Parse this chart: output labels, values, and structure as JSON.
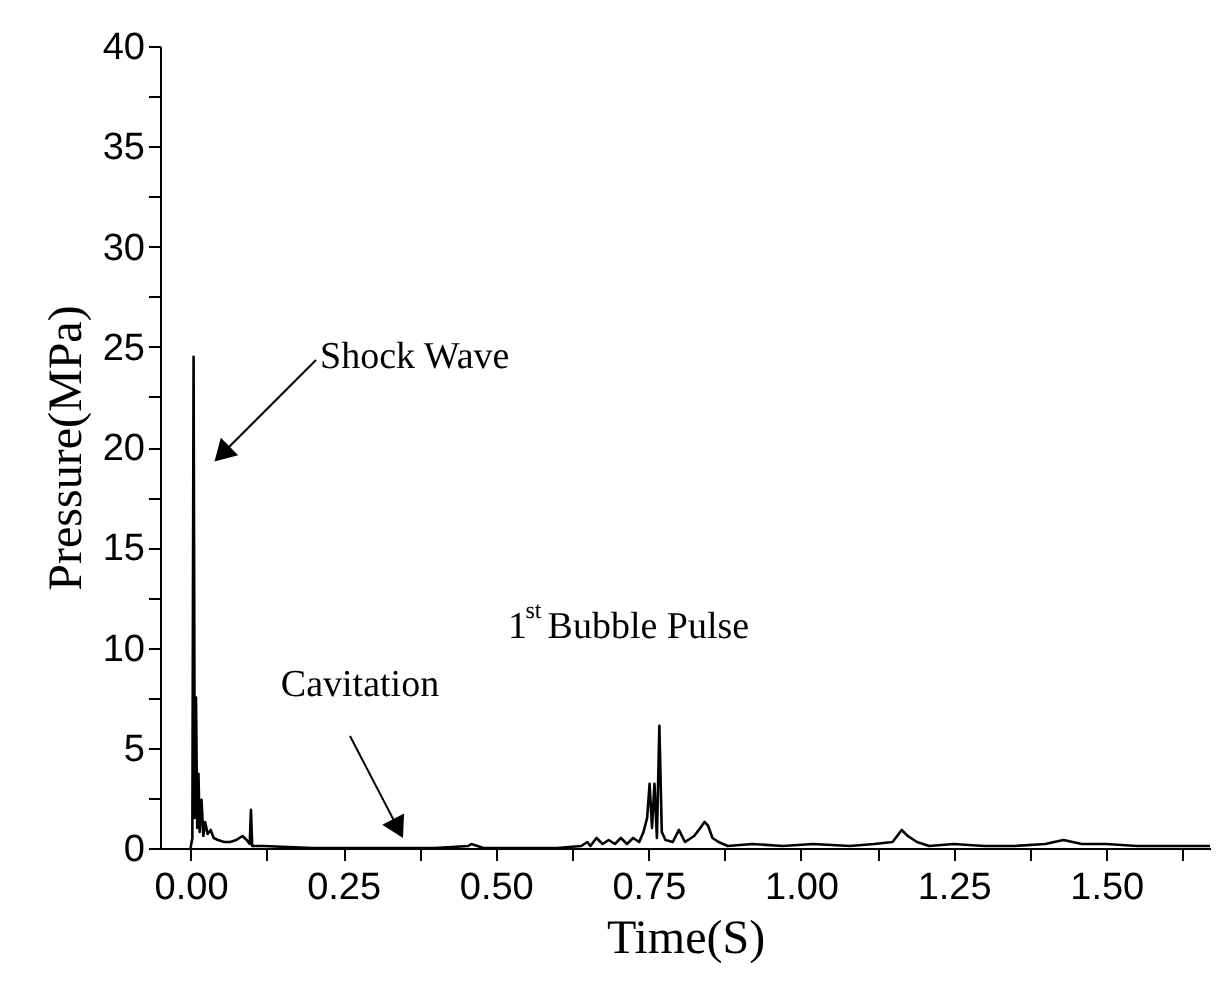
{
  "chart_data": {
    "type": "line",
    "xlabel": "Time(S)",
    "ylabel": "Pressure(MPa)",
    "xlim": [
      -0.05,
      1.67
    ],
    "ylim": [
      0,
      40
    ],
    "xticks": [
      {
        "value": 0,
        "label": "0.00"
      },
      {
        "value": 0.125,
        "label": null
      },
      {
        "value": 0.25,
        "label": "0.25"
      },
      {
        "value": 0.375,
        "label": null
      },
      {
        "value": 0.5,
        "label": "0.50"
      },
      {
        "value": 0.625,
        "label": null
      },
      {
        "value": 0.75,
        "label": "0.75"
      },
      {
        "value": 0.875,
        "label": null
      },
      {
        "value": 1,
        "label": "1.00"
      },
      {
        "value": 1.125,
        "label": null
      },
      {
        "value": 1.25,
        "label": "1.25"
      },
      {
        "value": 1.375,
        "label": null
      },
      {
        "value": 1.5,
        "label": "1.50"
      },
      {
        "value": 1.625,
        "label": null
      }
    ],
    "yticks": [
      0,
      {
        "value": 2.5,
        "label": null
      },
      5,
      {
        "value": 7.5,
        "label": null
      },
      10,
      {
        "value": 12.5,
        "label": null
      },
      15,
      {
        "value": 17.5,
        "label": null
      },
      20,
      {
        "value": 22.5,
        "label": null
      },
      25,
      {
        "value": 27.5,
        "label": null
      },
      30,
      {
        "value": 32.5,
        "label": null
      },
      35,
      {
        "value": 37.5,
        "label": null
      },
      40
    ],
    "grid": false,
    "marker": "none",
    "line_style": "solid",
    "series": [
      {
        "color": "#000000",
        "x": [
          0.0,
          0.003,
          0.005,
          0.007,
          0.009,
          0.011,
          0.013,
          0.015,
          0.018,
          0.021,
          0.024,
          0.028,
          0.033,
          0.038,
          0.045,
          0.055,
          0.065,
          0.075,
          0.085,
          0.092,
          0.097,
          0.099,
          0.101,
          0.12,
          0.2,
          0.3,
          0.4,
          0.455,
          0.46,
          0.47,
          0.48,
          0.6,
          0.64,
          0.65,
          0.655,
          0.665,
          0.675,
          0.685,
          0.695,
          0.705,
          0.715,
          0.725,
          0.735,
          0.742,
          0.748,
          0.752,
          0.756,
          0.76,
          0.764,
          0.768,
          0.772,
          0.778,
          0.79,
          0.8,
          0.81,
          0.825,
          0.835,
          0.842,
          0.848,
          0.855,
          0.865,
          0.88,
          0.92,
          0.97,
          1.02,
          1.08,
          1.12,
          1.15,
          1.165,
          1.175,
          1.19,
          1.21,
          1.25,
          1.3,
          1.35,
          1.4,
          1.43,
          1.46,
          1.5,
          1.55,
          1.6,
          1.67
        ],
        "values": [
          0,
          0.5,
          24.5,
          1.5,
          7.5,
          1.0,
          3.7,
          0.8,
          2.4,
          0.6,
          1.3,
          0.7,
          0.9,
          0.5,
          0.4,
          0.3,
          0.3,
          0.4,
          0.6,
          0.4,
          0.2,
          1.9,
          0.1,
          0.1,
          0.0,
          0.0,
          0.0,
          0.1,
          0.2,
          0.1,
          0.0,
          0.0,
          0.1,
          0.3,
          0.1,
          0.5,
          0.2,
          0.4,
          0.2,
          0.5,
          0.2,
          0.5,
          0.3,
          0.8,
          1.5,
          3.2,
          1.0,
          3.2,
          0.5,
          6.1,
          0.8,
          0.4,
          0.3,
          0.9,
          0.3,
          0.6,
          1.0,
          1.3,
          1.1,
          0.5,
          0.3,
          0.1,
          0.2,
          0.1,
          0.2,
          0.1,
          0.2,
          0.3,
          0.9,
          0.6,
          0.3,
          0.1,
          0.2,
          0.1,
          0.1,
          0.2,
          0.4,
          0.2,
          0.2,
          0.1,
          0.1,
          0.1
        ]
      }
    ],
    "annotations": [
      "Shock Wave",
      "Cavitation",
      "1$^{st}$Bubble Pulse"
    ]
  }
}
